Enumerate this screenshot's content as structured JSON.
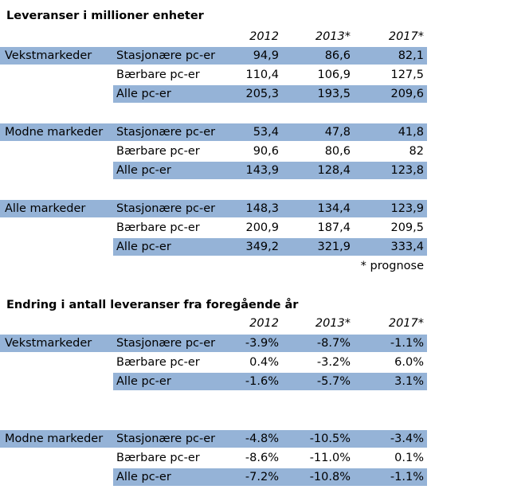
{
  "table1": {
    "title": "Leveranser i millioner enheter",
    "years": [
      "2012",
      "2013*",
      "2017*"
    ],
    "groups": [
      {
        "market": "Vekstmarkeder",
        "rows": [
          {
            "type": "Stasjonære pc-er",
            "values": [
              "94,9",
              "86,6",
              "82,1"
            ]
          },
          {
            "type": "Bærbare pc-er",
            "values": [
              "110,4",
              "106,9",
              "127,5"
            ]
          },
          {
            "type": "Alle pc-er",
            "values": [
              "205,3",
              "193,5",
              "209,6"
            ]
          }
        ]
      },
      {
        "market": "Modne markeder",
        "rows": [
          {
            "type": "Stasjonære pc-er",
            "values": [
              "53,4",
              "47,8",
              "41,8"
            ]
          },
          {
            "type": "Bærbare pc-er",
            "values": [
              "90,6",
              "80,6",
              "82"
            ]
          },
          {
            "type": "Alle pc-er",
            "values": [
              "143,9",
              "128,4",
              "123,8"
            ]
          }
        ]
      },
      {
        "market": "Alle markeder",
        "rows": [
          {
            "type": "Stasjonære pc-er",
            "values": [
              "148,3",
              "134,4",
              "123,9"
            ]
          },
          {
            "type": "Bærbare pc-er",
            "values": [
              "200,9",
              "187,4",
              "209,5"
            ]
          },
          {
            "type": "Alle pc-er",
            "values": [
              "349,2",
              "321,9",
              "333,4"
            ]
          }
        ]
      }
    ],
    "note": "* prognose"
  },
  "table2": {
    "title": "Endring i antall leveranser fra foregående år",
    "years": [
      "2012",
      "2013*",
      "2017*"
    ],
    "groups": [
      {
        "market": "Vekstmarkeder",
        "rows": [
          {
            "type": "Stasjonære pc-er",
            "values": [
              "-3.9%",
              "-8.7%",
              "-1.1%"
            ]
          },
          {
            "type": "Bærbare pc-er",
            "values": [
              "0.4%",
              "-3.2%",
              "6.0%"
            ]
          },
          {
            "type": "Alle pc-er",
            "values": [
              "-1.6%",
              "-5.7%",
              "3.1%"
            ]
          }
        ]
      },
      {
        "market": "Modne markeder",
        "rows": [
          {
            "type": "Stasjonære pc-er",
            "values": [
              "-4.8%",
              "-10.5%",
              "-3.4%"
            ]
          },
          {
            "type": "Bærbare pc-er",
            "values": [
              "-8.6%",
              "-11.0%",
              "0.1%"
            ]
          },
          {
            "type": "Alle pc-er",
            "values": [
              "-7.2%",
              "-10.8%",
              "-1.1%"
            ]
          }
        ]
      }
    ]
  },
  "colors": {
    "band": "#95b3d7"
  }
}
